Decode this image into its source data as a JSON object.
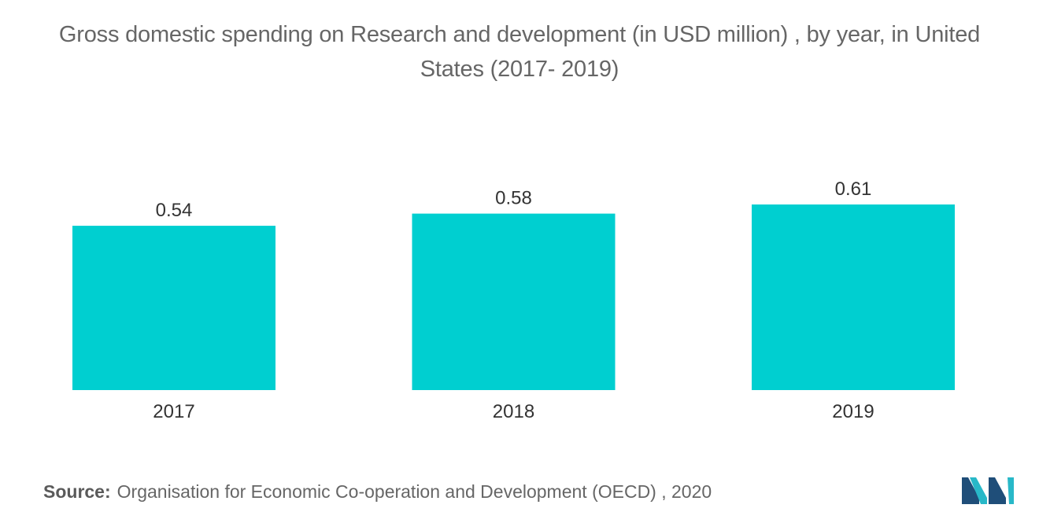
{
  "title": {
    "line1": "Gross domestic spending on Research and development (in USD million) , by year, in United",
    "line2": "States (2017- 2019)"
  },
  "chart_data": {
    "type": "bar",
    "categories": [
      "2017",
      "2018",
      "2019"
    ],
    "values": [
      0.54,
      0.58,
      0.61
    ],
    "data_labels": [
      "0.54",
      "0.58",
      "0.61"
    ],
    "title": "Gross domestic spending on Research and development (in USD million) , by year, in United States (2017- 2019)",
    "xlabel": "",
    "ylabel": "",
    "ylim": [
      0,
      0.61
    ],
    "grid": false,
    "legend": "none",
    "bar_color": "#00cfd0"
  },
  "source": {
    "label": "Source:",
    "text": "Organisation for Economic Co-operation and Development (OECD) , 2020"
  },
  "colors": {
    "bar": "#00cfd0",
    "text": "#666666",
    "logo_dark": "#1f4e79",
    "logo_light": "#28b8c8"
  },
  "logo": {
    "icon": "mordor-intelligence-logo-icon"
  }
}
